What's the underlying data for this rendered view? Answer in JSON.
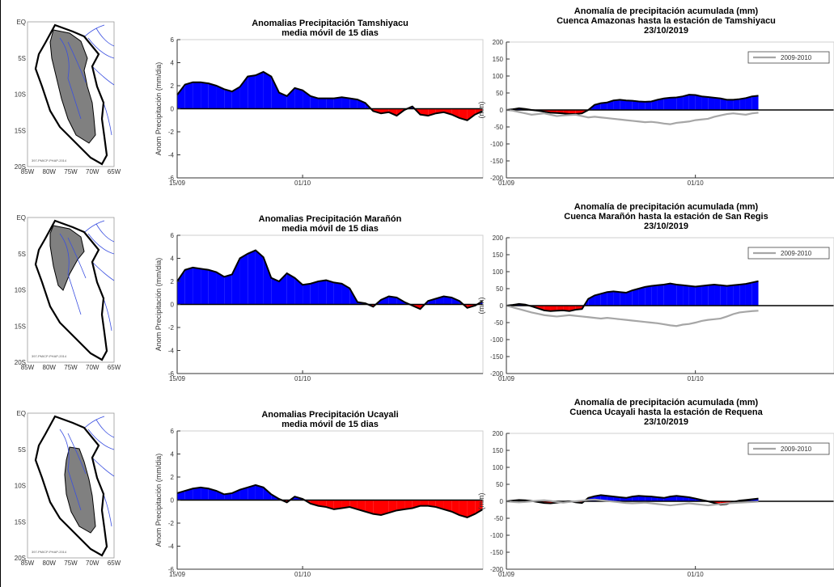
{
  "panels": [
    {
      "map": {
        "lat_labels": [
          "EQ",
          "5S",
          "10S",
          "15S",
          "20S"
        ],
        "lon_labels": [
          "85W",
          "80W",
          "75W",
          "70W",
          "65W"
        ],
        "credit": "397-PMICP-PHAP-2014",
        "basin_fill": "#808080",
        "river_color": "#3a4fe0"
      },
      "anomaly_chart": {
        "type": "area",
        "title": "Anomalias Precipitación Tamshiyacu",
        "subtitle": "media móvil de 15 dias",
        "ylabel": "Anom Precipitación (mm/dia)",
        "ylim": [
          -6,
          6
        ],
        "yticks": [
          -6,
          -4,
          -2,
          0,
          2,
          4,
          6
        ],
        "x_tick_labels": [
          "15/09",
          "01/10"
        ],
        "x_tick_days": [
          0,
          16
        ],
        "xlim": [
          0,
          39
        ],
        "positive_color": "#0000ff",
        "negative_color": "#ff0000",
        "values": [
          1.2,
          2.1,
          2.3,
          2.3,
          2.2,
          2.0,
          1.7,
          1.5,
          1.9,
          2.8,
          2.9,
          3.2,
          2.8,
          1.4,
          1.1,
          1.8,
          1.6,
          1.1,
          0.9,
          0.9,
          0.9,
          1.0,
          0.9,
          0.8,
          0.5,
          -0.2,
          -0.4,
          -0.3,
          -0.6,
          -0.1,
          0.2,
          -0.5,
          -0.6,
          -0.4,
          -0.3,
          -0.5,
          -0.8,
          -1.0,
          -0.5,
          -0.2
        ]
      },
      "cumulative_chart": {
        "type": "area",
        "title_lines": [
          "Anomalía de precipitación acumulada (mm)",
          "Cuenca Amazonas hasta la estación de Tamshiyacu",
          "23/10/2019"
        ],
        "ylabel": "(mm)",
        "ylim": [
          -200,
          200
        ],
        "yticks": [
          -200,
          -150,
          -100,
          -50,
          0,
          50,
          100,
          150,
          200
        ],
        "x_tick_labels": [
          "01/09",
          "01/10"
        ],
        "x_tick_days": [
          0,
          30
        ],
        "xlim": [
          0,
          52
        ],
        "legend": "2009-2010",
        "legend_position": "top-right",
        "reference_color": "#a6a6a6",
        "values": [
          0,
          2,
          5,
          3,
          0,
          -2,
          -5,
          -8,
          -9,
          -10,
          -12,
          -12,
          -10,
          0,
          15,
          20,
          22,
          28,
          30,
          28,
          27,
          25,
          24,
          25,
          30,
          34,
          36,
          37,
          40,
          45,
          44,
          40,
          38,
          36,
          34,
          30,
          30,
          32,
          35,
          40,
          42
        ],
        "reference": [
          0,
          -2,
          -6,
          -10,
          -14,
          -12,
          -10,
          -14,
          -18,
          -16,
          -15,
          -14,
          -18,
          -22,
          -20,
          -22,
          -24,
          -26,
          -28,
          -30,
          -32,
          -34,
          -36,
          -35,
          -37,
          -40,
          -42,
          -38,
          -36,
          -34,
          -30,
          -28,
          -26,
          -20,
          -16,
          -12,
          -10,
          -12,
          -14,
          -10,
          -8
        ]
      }
    },
    {
      "map": {
        "lat_labels": [
          "EQ",
          "5S",
          "10S",
          "15S",
          "20S"
        ],
        "lon_labels": [
          "85W",
          "80W",
          "75W",
          "70W",
          "65W"
        ],
        "credit": "397-PMICP-PHAP-2014",
        "basin_fill": "#808080",
        "river_color": "#3a4fe0"
      },
      "anomaly_chart": {
        "type": "area",
        "title": "Anomalias Precipitación Marañón",
        "subtitle": "media móvil de 15 dias",
        "ylabel": "Anom Precipitación (mm/dia)",
        "ylim": [
          -6,
          6
        ],
        "yticks": [
          -6,
          -4,
          -2,
          0,
          2,
          4,
          6
        ],
        "x_tick_labels": [
          "15/09",
          "01/10"
        ],
        "x_tick_days": [
          0,
          16
        ],
        "xlim": [
          0,
          39
        ],
        "positive_color": "#0000ff",
        "negative_color": "#ff0000",
        "values": [
          2.0,
          3.0,
          3.2,
          3.1,
          3.0,
          2.8,
          2.4,
          2.6,
          4.0,
          4.4,
          4.7,
          4.1,
          2.3,
          2.0,
          2.7,
          2.3,
          1.7,
          1.8,
          2.0,
          2.1,
          1.9,
          1.8,
          1.4,
          0.2,
          0.1,
          -0.2,
          0.4,
          0.7,
          0.6,
          0.2,
          -0.1,
          -0.4,
          0.3,
          0.5,
          0.7,
          0.6,
          0.3,
          -0.3,
          -0.1,
          0.3
        ]
      },
      "cumulative_chart": {
        "type": "area",
        "title_lines": [
          "Anomalía de precipitación acumulada (mm)",
          "Cuenca Marañón hasta la estación de San Regis",
          "23/10/2019"
        ],
        "ylabel": "(mm)",
        "ylim": [
          -200,
          200
        ],
        "yticks": [
          -200,
          -150,
          -100,
          -50,
          0,
          50,
          100,
          150,
          200
        ],
        "x_tick_labels": [
          "01/09",
          "01/10"
        ],
        "x_tick_days": [
          0,
          30
        ],
        "xlim": [
          0,
          52
        ],
        "legend": "2009-2010",
        "legend_position": "top-right",
        "reference_color": "#a6a6a6",
        "values": [
          0,
          2,
          5,
          3,
          -2,
          -8,
          -14,
          -16,
          -15,
          -14,
          -16,
          -12,
          -10,
          20,
          30,
          35,
          40,
          42,
          40,
          38,
          45,
          50,
          55,
          58,
          60,
          62,
          65,
          62,
          60,
          58,
          56,
          58,
          60,
          62,
          60,
          58,
          60,
          62,
          64,
          68,
          72
        ],
        "reference": [
          0,
          -5,
          -10,
          -15,
          -20,
          -24,
          -28,
          -30,
          -32,
          -30,
          -28,
          -30,
          -32,
          -34,
          -36,
          -38,
          -36,
          -38,
          -40,
          -42,
          -44,
          -46,
          -48,
          -50,
          -52,
          -55,
          -58,
          -60,
          -56,
          -54,
          -50,
          -45,
          -42,
          -40,
          -38,
          -32,
          -25,
          -20,
          -18,
          -16,
          -15
        ]
      }
    },
    {
      "map": {
        "lat_labels": [
          "EQ",
          "5S",
          "10S",
          "15S",
          "20S"
        ],
        "lon_labels": [
          "85W",
          "80W",
          "75W",
          "70W",
          "65W"
        ],
        "credit": "397-PMICP-PHAP-2014",
        "basin_fill": "#808080",
        "river_color": "#3a4fe0"
      },
      "anomaly_chart": {
        "type": "area",
        "title": "Anomalias Precipitación Ucayali",
        "subtitle": "media móvil de 15 dias",
        "ylabel": "Anom Precipitación (mm/dia)",
        "ylim": [
          -6,
          6
        ],
        "yticks": [
          -6,
          -4,
          -2,
          0,
          2,
          4,
          6
        ],
        "x_tick_labels": [
          "15/09",
          "01/10"
        ],
        "x_tick_days": [
          0,
          16
        ],
        "xlim": [
          0,
          39
        ],
        "positive_color": "#0000ff",
        "negative_color": "#ff0000",
        "values": [
          0.6,
          0.8,
          1.0,
          1.1,
          1.0,
          0.8,
          0.5,
          0.6,
          0.9,
          1.1,
          1.3,
          1.1,
          0.5,
          0.1,
          -0.2,
          0.3,
          0.1,
          -0.3,
          -0.5,
          -0.6,
          -0.8,
          -0.7,
          -0.6,
          -0.8,
          -1.0,
          -1.2,
          -1.3,
          -1.1,
          -0.9,
          -0.8,
          -0.7,
          -0.5,
          -0.5,
          -0.6,
          -0.8,
          -1.0,
          -1.3,
          -1.5,
          -1.2,
          -0.8
        ]
      },
      "cumulative_chart": {
        "type": "area",
        "title_lines": [
          "Anomalía de precipitación acumulada (mm)",
          "Cuenca Ucayali hasta la estación de Requena",
          "23/10/2019"
        ],
        "ylabel": "(mm)",
        "ylim": [
          -200,
          200
        ],
        "yticks": [
          -200,
          -150,
          -100,
          -50,
          0,
          50,
          100,
          150,
          200
        ],
        "x_tick_labels": [
          "01/09",
          "01/10"
        ],
        "x_tick_days": [
          0,
          30
        ],
        "xlim": [
          0,
          52
        ],
        "legend": "2009-2010",
        "legend_position": "top-right",
        "reference_color": "#a6a6a6",
        "values": [
          0,
          2,
          4,
          3,
          1,
          -2,
          -5,
          -6,
          -4,
          -2,
          0,
          -3,
          -5,
          10,
          15,
          18,
          16,
          14,
          12,
          10,
          14,
          16,
          15,
          14,
          12,
          10,
          14,
          16,
          14,
          12,
          8,
          4,
          0,
          -5,
          -10,
          -8,
          -2,
          2,
          4,
          6,
          8
        ],
        "reference": [
          0,
          -2,
          -3,
          -2,
          0,
          2,
          3,
          1,
          -2,
          -4,
          -2,
          0,
          2,
          4,
          5,
          3,
          1,
          -1,
          -3,
          -5,
          -6,
          -5,
          -4,
          -6,
          -8,
          -10,
          -12,
          -10,
          -8,
          -6,
          -8,
          -10,
          -12,
          -10,
          -8,
          -6,
          -5,
          -4,
          -3,
          -2,
          -1
        ]
      }
    }
  ]
}
